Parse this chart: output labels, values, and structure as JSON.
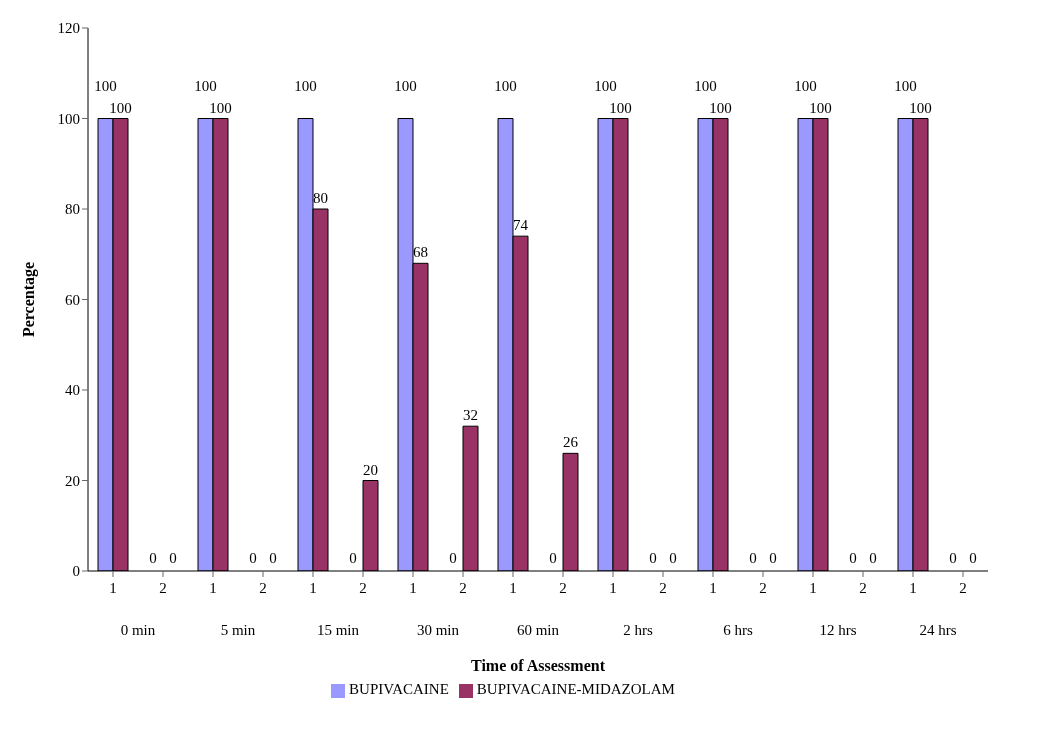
{
  "chart_data": {
    "type": "bar",
    "xlabel": "Time of Assessment",
    "ylabel": "Percentage",
    "categories": [
      "1",
      "2",
      "1",
      "2",
      "1",
      "2",
      "1",
      "2",
      "1",
      "2",
      "1",
      "2",
      "1",
      "2",
      "1",
      "2",
      "1",
      "2"
    ],
    "series": [
      {
        "name": "BUPIVACAINE",
        "color": "#9999ff",
        "values": [
          100,
          0,
          100,
          0,
          100,
          0,
          100,
          0,
          100,
          0,
          100,
          0,
          100,
          0,
          100,
          0,
          100,
          0
        ]
      },
      {
        "name": "BUPIVACAINE-MIDAZOLAM",
        "color": "#993366",
        "values": [
          100,
          0,
          100,
          0,
          80,
          20,
          68,
          32,
          74,
          26,
          100,
          0,
          100,
          0,
          100,
          0,
          100,
          0
        ]
      }
    ],
    "annotations": [
      "0 min",
      "5 min",
      "15 min",
      "30 min",
      "60 min",
      "2 hrs",
      "6 hrs",
      "12 hrs",
      "24 hrs"
    ],
    "ylim": [
      0,
      120
    ],
    "yticks": [
      0,
      20,
      40,
      60,
      80,
      100,
      120
    ],
    "grid": false,
    "data_labels": true,
    "legend": "bottom"
  }
}
